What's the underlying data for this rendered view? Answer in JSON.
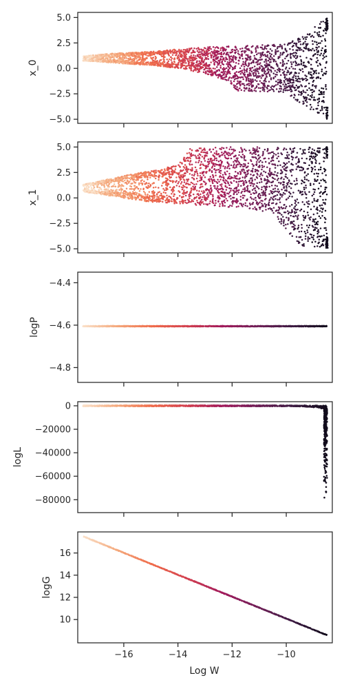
{
  "chart_data": [
    {
      "type": "scatter",
      "xlabel": "",
      "ylabel": "x_0",
      "xlim": [
        -17.7,
        -8.3
      ],
      "ylim": [
        -5.4,
        5.5
      ],
      "xticks": [
        -16,
        -14,
        -12,
        -10
      ],
      "yticks": [
        -5.0,
        -2.5,
        0.0,
        2.5,
        5.0
      ],
      "ytick_labels": [
        "−5.0",
        "−2.5",
        "0.0",
        "2.5",
        "5.0"
      ],
      "xtick_labels_visible": false,
      "shape": "fan",
      "envelope": [
        {
          "x": -17.5,
          "lo": 0.75,
          "hi": 1.2
        },
        {
          "x": -16.5,
          "lo": 0.55,
          "hi": 1.45
        },
        {
          "x": -15.0,
          "lo": 0.3,
          "hi": 1.65
        },
        {
          "x": -14.0,
          "lo": 0.0,
          "hi": 1.9
        },
        {
          "x": -13.0,
          "lo": -0.5,
          "hi": 2.1
        },
        {
          "x": -12.2,
          "lo": -1.2,
          "hi": 2.2
        },
        {
          "x": -11.8,
          "lo": -2.2,
          "hi": 2.2
        },
        {
          "x": -10.0,
          "lo": -2.4,
          "hi": 2.4
        },
        {
          "x": -9.5,
          "lo": -3.4,
          "hi": 3.0
        },
        {
          "x": -8.5,
          "lo": -5.0,
          "hi": 5.0
        }
      ],
      "color_by": "Log W"
    },
    {
      "type": "scatter",
      "xlabel": "",
      "ylabel": "x_1",
      "xlim": [
        -17.7,
        -8.3
      ],
      "ylim": [
        -5.4,
        5.5
      ],
      "xticks": [
        -16,
        -14,
        -12,
        -10
      ],
      "yticks": [
        -5.0,
        -2.5,
        0.0,
        2.5,
        5.0
      ],
      "ytick_labels": [
        "−5.0",
        "−2.5",
        "0.0",
        "2.5",
        "5.0"
      ],
      "xtick_labels_visible": false,
      "shape": "fan",
      "envelope": [
        {
          "x": -17.5,
          "lo": 0.6,
          "hi": 1.3
        },
        {
          "x": -16.5,
          "lo": 0.2,
          "hi": 1.9
        },
        {
          "x": -15.0,
          "lo": -0.4,
          "hi": 2.7
        },
        {
          "x": -14.0,
          "lo": -0.6,
          "hi": 3.2
        },
        {
          "x": -13.5,
          "lo": -0.7,
          "hi": 5.0
        },
        {
          "x": -11.5,
          "lo": -1.0,
          "hi": 5.0
        },
        {
          "x": -10.5,
          "lo": -1.6,
          "hi": 5.0
        },
        {
          "x": -9.5,
          "lo": -4.7,
          "hi": 5.0
        },
        {
          "x": -8.5,
          "lo": -5.0,
          "hi": 5.0
        }
      ],
      "color_by": "Log W"
    },
    {
      "type": "scatter",
      "xlabel": "",
      "ylabel": "logP",
      "xlim": [
        -17.7,
        -8.3
      ],
      "ylim": [
        -4.87,
        -4.35
      ],
      "xticks": [
        -16,
        -14,
        -12,
        -10
      ],
      "yticks": [
        -4.8,
        -4.6,
        -4.4
      ],
      "ytick_labels": [
        "−4.8",
        "−4.6",
        "−4.4"
      ],
      "xtick_labels_visible": false,
      "shape": "constant",
      "constant_y": -4.605,
      "x_range": [
        -17.5,
        -8.5
      ],
      "color_by": "Log W"
    },
    {
      "type": "scatter",
      "xlabel": "",
      "ylabel": "logL",
      "xlim": [
        -17.7,
        -8.3
      ],
      "ylim": [
        -91000,
        3500
      ],
      "xticks": [
        -16,
        -14,
        -12,
        -10
      ],
      "yticks": [
        -80000,
        -60000,
        -40000,
        -20000,
        0
      ],
      "ytick_labels": [
        "−80000",
        "−60000",
        "−40000",
        "−20000",
        "0"
      ],
      "xtick_labels_visible": false,
      "shape": "cliff",
      "x_range": [
        -17.5,
        -8.5
      ],
      "plateau_y": 0,
      "min_y": -86000,
      "color_by": "Log W"
    },
    {
      "type": "scatter",
      "xlabel": "Log W",
      "ylabel": "logG",
      "xlim": [
        -17.7,
        -8.3
      ],
      "ylim": [
        7.9,
        17.9
      ],
      "xticks": [
        -16,
        -14,
        -12,
        -10
      ],
      "xtick_labels": [
        "−16",
        "−14",
        "−12",
        "−10"
      ],
      "yticks": [
        10,
        12,
        14,
        16
      ],
      "ytick_labels": [
        "10",
        "12",
        "14",
        "16"
      ],
      "xtick_labels_visible": true,
      "shape": "linear",
      "line": {
        "x0": -17.5,
        "y0": 17.5,
        "x1": -8.5,
        "y1": 8.6
      },
      "color_by": "Log W"
    }
  ],
  "colormap": [
    "#fae0c8",
    "#f4a77a",
    "#ef6b4b",
    "#d23f4f",
    "#a11a5b",
    "#701f57",
    "#3d1a42",
    "#120c1c"
  ]
}
